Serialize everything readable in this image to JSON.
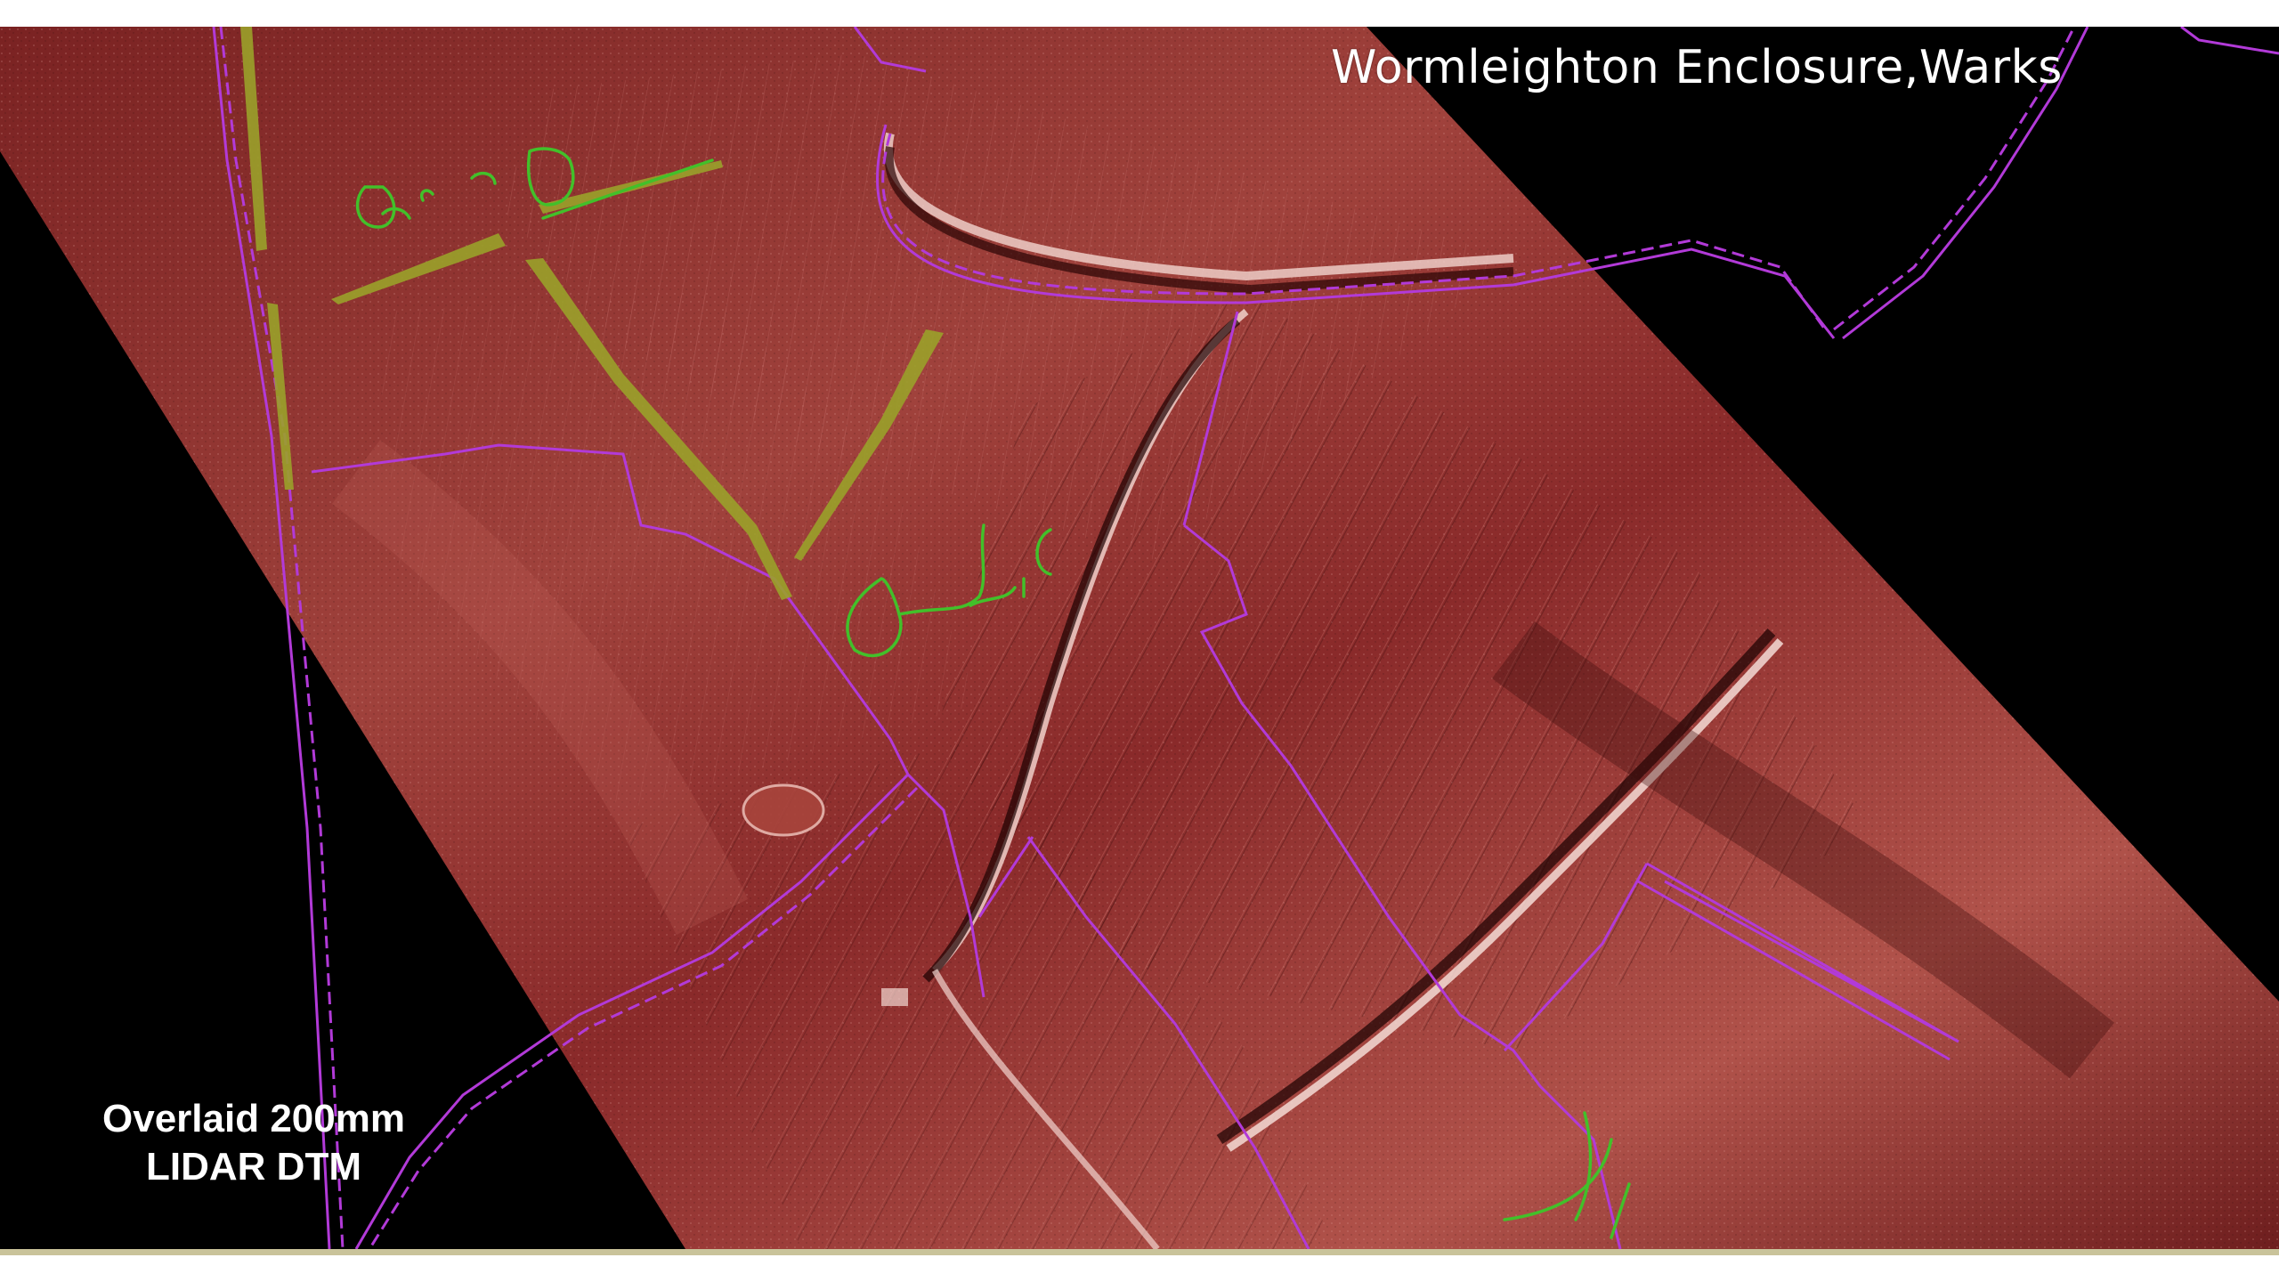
{
  "map": {
    "title": "Wormleighton Enclosure,Warks",
    "caption": {
      "line1": "Overlaid 200mm",
      "line2": "LIDAR DTM"
    },
    "layers": {
      "lidar_dtm": {
        "color": "#8a2a2a",
        "highlight": "#c45a52",
        "shadow": "#3c0c0c"
      },
      "boundaries": {
        "color": "#b23ad8"
      },
      "annotations": {
        "color": "#42c02a"
      },
      "features": {
        "color": "#9aa12a"
      }
    }
  }
}
